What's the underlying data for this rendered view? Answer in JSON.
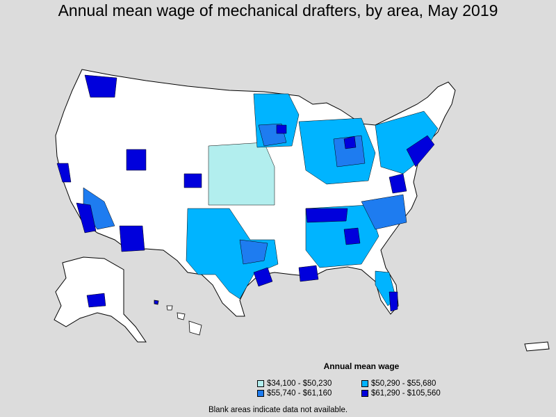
{
  "title": "Annual mean wage of mechanical drafters, by area, May 2019",
  "legend": {
    "title": "Annual mean wage",
    "items": [
      {
        "label": "$34,100 - $50,230",
        "color": "#b2eeee"
      },
      {
        "label": "$50,290 - $55,680",
        "color": "#00b4ff"
      },
      {
        "label": "$55,740 - $61,160",
        "color": "#1e7cf0"
      },
      {
        "label": "$61,290 - $105,560",
        "color": "#0000dc"
      }
    ]
  },
  "note": "Blank areas indicate data not available.",
  "colors": {
    "background": "#dcdcdc",
    "land": "#ffffff",
    "border": "#000000"
  },
  "icons": [
    "us-map-icon",
    "alaska-map-icon",
    "hawaii-map-icon",
    "puerto-rico-map-icon"
  ]
}
